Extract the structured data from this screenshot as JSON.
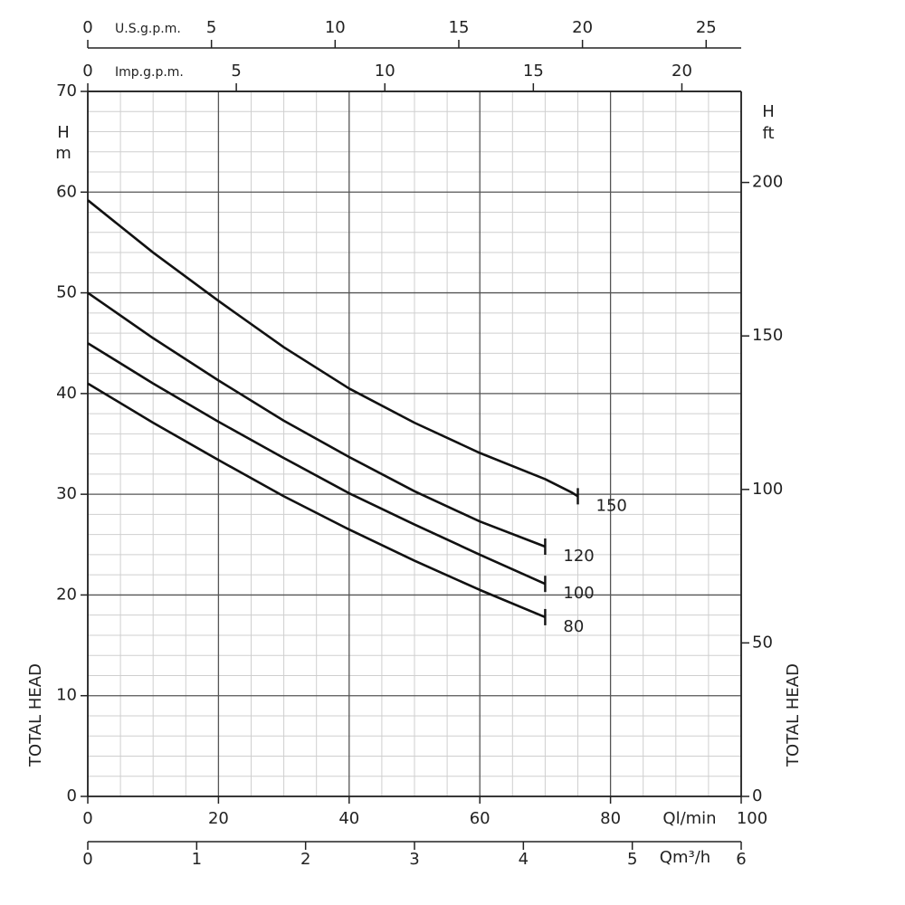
{
  "chart_data": {
    "type": "line",
    "x_label": "Ql/min",
    "xlim": [
      0,
      100
    ],
    "xticks": [
      0,
      20,
      40,
      60,
      80,
      100
    ],
    "y_label": "H",
    "y_unit": "m",
    "ylim": [
      0,
      70
    ],
    "yticks": [
      0,
      10,
      20,
      30,
      40,
      50,
      60,
      70
    ],
    "y2_label": "H",
    "y2_unit": "ft",
    "y2lim": [
      0,
      229.66
    ],
    "y2ticks": [
      0,
      50,
      100,
      150,
      200
    ],
    "left_title": "TOTAL HEAD",
    "right_title": "TOTAL HEAD",
    "grid": true,
    "minor_grid": true,
    "color": "#111111",
    "secondary_x_axes": [
      {
        "label": "Qm³/h",
        "position": "bottom",
        "xlim": [
          0,
          6
        ],
        "xticks": [
          0,
          1,
          2,
          3,
          4,
          5,
          6
        ]
      },
      {
        "label": "Imp.g.p.m.",
        "position": "top",
        "xlim": [
          0,
          21.997
        ],
        "xticks": [
          0,
          5,
          10,
          15,
          20
        ]
      },
      {
        "label": "U.S.g.p.m.",
        "position": "top",
        "xlim": [
          0,
          26.417
        ],
        "xticks": [
          0,
          5,
          10,
          15,
          20,
          25
        ]
      }
    ],
    "series": [
      {
        "name": "150",
        "x": [
          0,
          10,
          20,
          30,
          40,
          50,
          60,
          70,
          74,
          75
        ],
        "values": [
          59.2,
          54,
          49.2,
          44.6,
          40.5,
          37.1,
          34.1,
          31.5,
          30.2,
          29.8
        ]
      },
      {
        "name": "120",
        "x": [
          0,
          10,
          20,
          30,
          40,
          50,
          60,
          70
        ],
        "values": [
          50,
          45.5,
          41.3,
          37.3,
          33.7,
          30.3,
          27.3,
          24.8
        ]
      },
      {
        "name": "100",
        "x": [
          0,
          10,
          20,
          30,
          40,
          50,
          60,
          70
        ],
        "values": [
          45,
          41,
          37.2,
          33.6,
          30.1,
          27,
          24,
          21.1
        ]
      },
      {
        "name": "80",
        "x": [
          0,
          10,
          20,
          30,
          40,
          50,
          60,
          70
        ],
        "values": [
          41,
          37.1,
          33.4,
          29.8,
          26.5,
          23.4,
          20.5,
          17.8
        ]
      }
    ]
  }
}
